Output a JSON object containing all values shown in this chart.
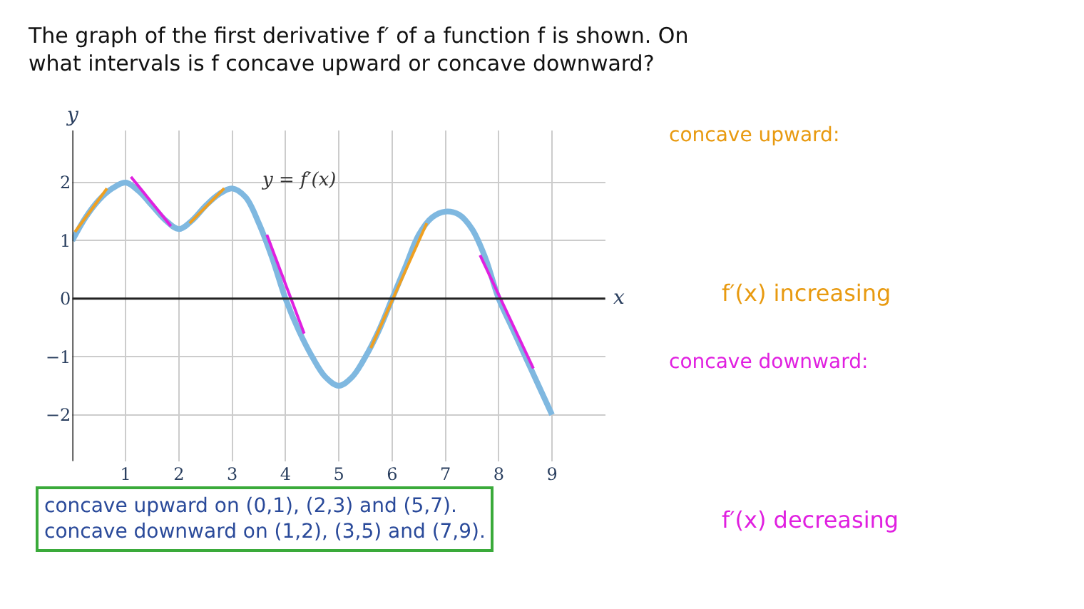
{
  "chart_data": {
    "type": "line",
    "title": "The graph of the first derivative f′ of a function f is shown. On\nwhat intervals is f concave upward or concave downward?",
    "xlabel": "x",
    "ylabel": "y",
    "xlim": [
      0,
      10
    ],
    "ylim": [
      -2.8,
      2.9
    ],
    "xticks": [
      1,
      2,
      3,
      4,
      5,
      6,
      7,
      8,
      9
    ],
    "yticks": [
      -2,
      -1,
      0,
      1,
      2
    ],
    "grid": true,
    "legend": false,
    "marker": "none",
    "line_style": "solid",
    "series": [
      {
        "name": "y = f′(x)",
        "color": "#7fb8e0",
        "x": [
          0,
          0.25,
          0.5,
          0.75,
          1,
          1.25,
          1.5,
          1.75,
          2,
          2.25,
          2.5,
          2.75,
          3,
          3.25,
          3.5,
          3.75,
          4,
          4.25,
          4.5,
          4.75,
          5,
          5.25,
          5.5,
          5.75,
          6,
          6.25,
          6.5,
          6.75,
          7,
          7.25,
          7.5,
          7.75,
          8,
          8.25,
          8.5,
          8.75,
          9
        ],
        "values": [
          1,
          1.4,
          1.7,
          1.9,
          2,
          1.85,
          1.6,
          1.35,
          1.2,
          1.35,
          1.6,
          1.8,
          1.9,
          1.75,
          1.3,
          0.7,
          0,
          -0.55,
          -1.0,
          -1.35,
          -1.5,
          -1.35,
          -1.0,
          -0.55,
          0,
          0.55,
          1.1,
          1.4,
          1.5,
          1.45,
          1.2,
          0.7,
          0,
          -0.5,
          -1.0,
          -1.5,
          -2
        ]
      },
      {
        "color": "#f0a020",
        "x": [
          0.05,
          0.65
        ],
        "values": [
          1.15,
          1.9
        ]
      },
      {
        "color": "#f0a020",
        "x": [
          2.2,
          2.85
        ],
        "values": [
          1.3,
          1.9
        ]
      },
      {
        "color": "#f0a020",
        "x": [
          5.6,
          6.65
        ],
        "values": [
          -0.85,
          1.3
        ]
      },
      {
        "color": "#e020e0",
        "x": [
          1.1,
          1.85
        ],
        "values": [
          2.1,
          1.25
        ]
      },
      {
        "color": "#e020e0",
        "x": [
          3.65,
          4.35
        ],
        "values": [
          1.1,
          -0.6
        ]
      },
      {
        "color": "#e020e0",
        "x": [
          7.65,
          8.65
        ],
        "values": [
          0.75,
          -1.2
        ]
      }
    ],
    "annotations": [
      "concave upward:",
      "f′(x) increasing",
      "concave downward:",
      "f′(x) decreasing",
      "concave upward on (0,1), (2,3) and (5,7).\nconcave downward on (1,2), (3,5) and (7,9)."
    ]
  }
}
